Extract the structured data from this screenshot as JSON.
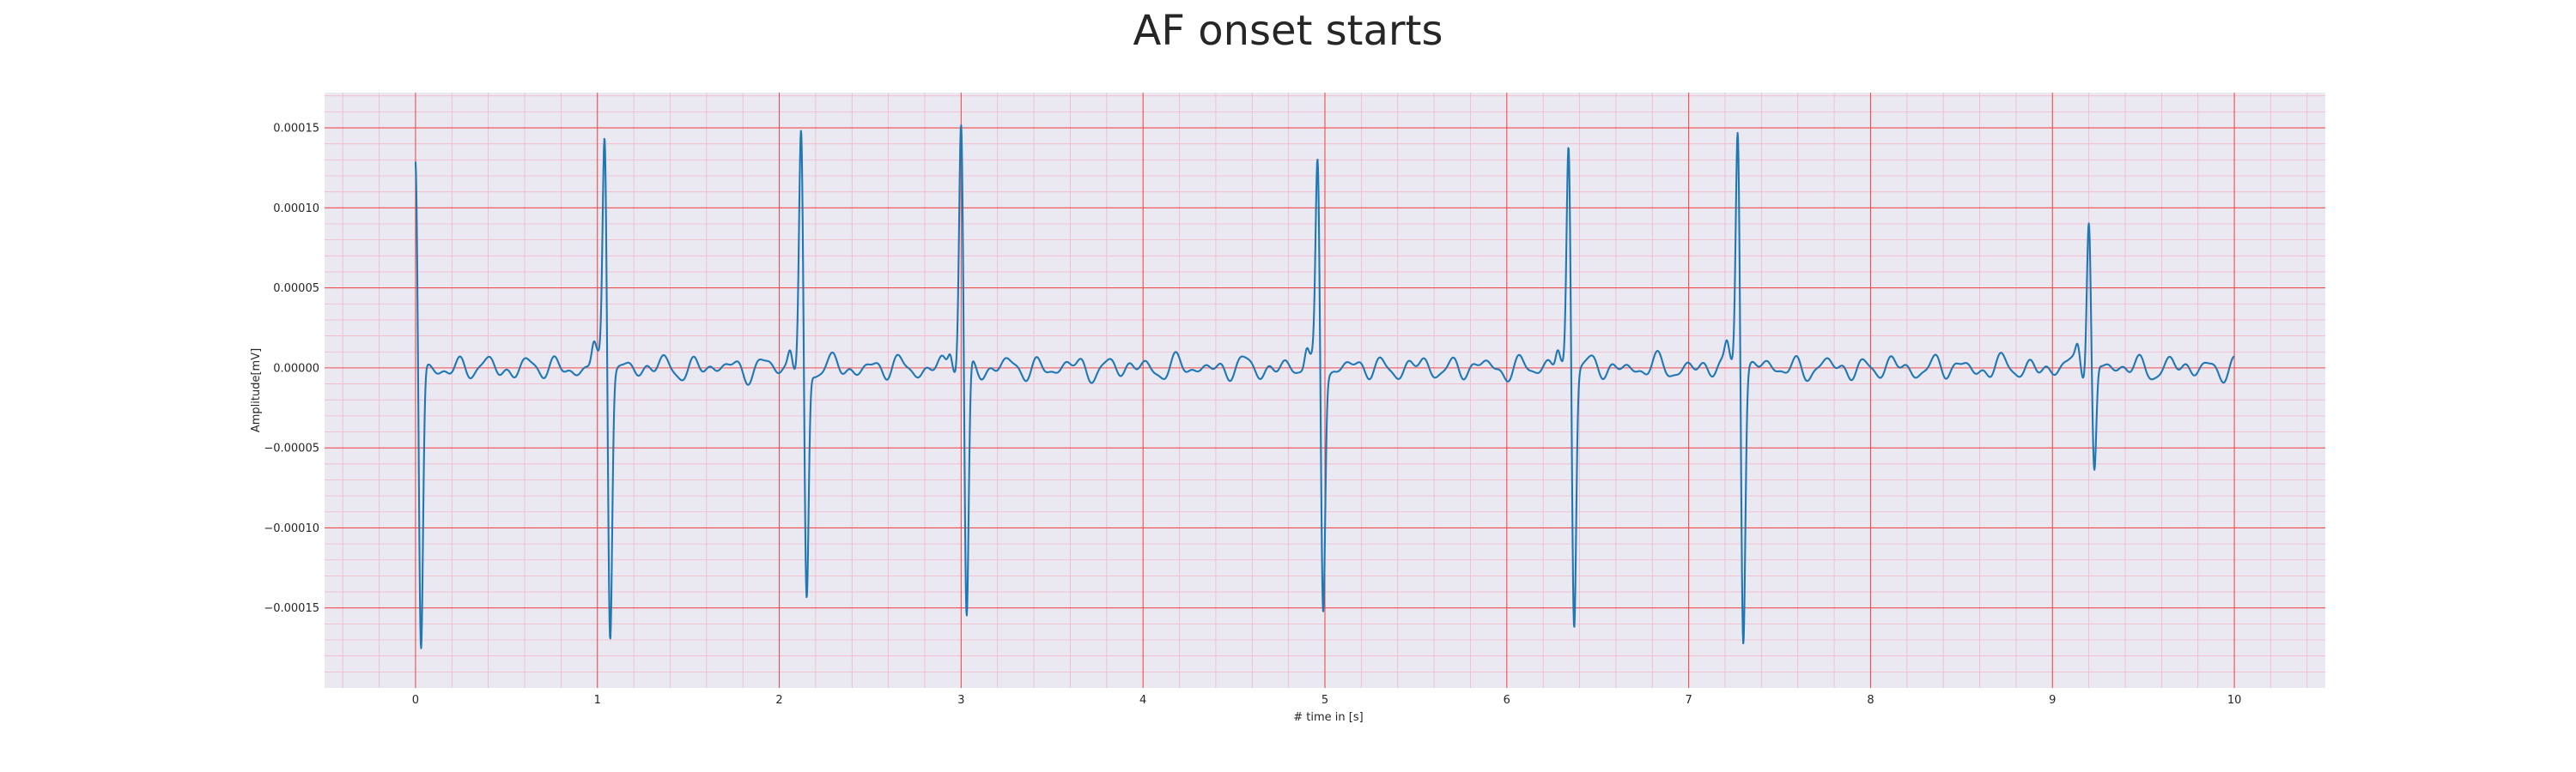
{
  "chart_data": {
    "type": "line",
    "title": "AF onset starts",
    "xlabel": "# time in [s]",
    "ylabel": "Amplitude[mV]",
    "xlim": [
      -0.5,
      10.5
    ],
    "ylim": [
      -0.0002,
      0.000172
    ],
    "x_ticks": [
      0,
      1,
      2,
      3,
      4,
      5,
      6,
      7,
      8,
      9,
      10
    ],
    "x_tick_labels": [
      "0",
      "1",
      "2",
      "3",
      "4",
      "5",
      "6",
      "7",
      "8",
      "9",
      "10"
    ],
    "y_ticks": [
      0.00015,
      0.0001,
      5e-05,
      0.0,
      -5e-05,
      -0.0001,
      -0.00015
    ],
    "y_tick_labels": [
      "0.00015",
      "0.00010",
      "0.00005",
      "0.00000",
      "−0.00005",
      "−0.00010",
      "−0.00015"
    ],
    "grid": true,
    "series": [
      {
        "color": "#1f77b4",
        "x_start": 0,
        "x_end": 10,
        "baseline_noise_amplitude": 8e-06,
        "beats": [
          {
            "t": 0.0,
            "r": 0.000126,
            "s": -0.000182
          },
          {
            "t": 1.04,
            "r": 0.000148,
            "s": -0.000165
          },
          {
            "t": 2.12,
            "r": 0.000147,
            "s": -0.000149
          },
          {
            "t": 3.0,
            "r": 0.000156,
            "s": -0.000162
          },
          {
            "t": 4.96,
            "r": 0.000128,
            "s": -0.000149
          },
          {
            "t": 6.34,
            "r": 0.000145,
            "s": -0.000158
          },
          {
            "t": 7.27,
            "r": 0.000156,
            "s": -0.000167
          },
          {
            "t": 9.2,
            "r": 9.8e-05,
            "s": -6.8e-05
          }
        ]
      }
    ]
  }
}
